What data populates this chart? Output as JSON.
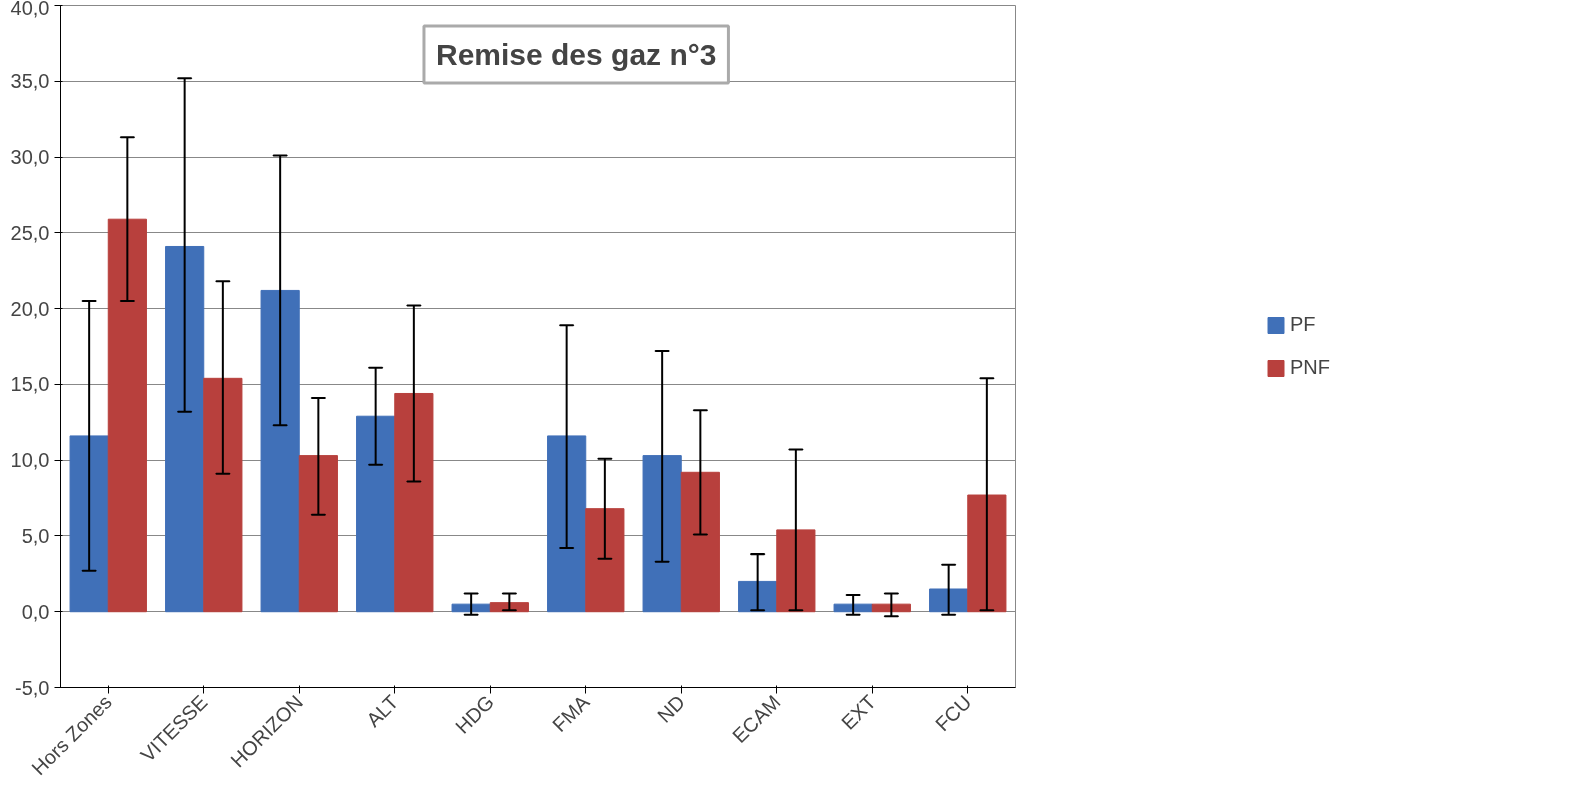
{
  "chart_data": {
    "type": "bar",
    "title": "Remise des gaz n°3",
    "categories": [
      "Hors Zones",
      "VITESSE",
      "HORIZON",
      "ALT",
      "HDG",
      "FMA",
      "ND",
      "ECAM",
      "EXT",
      "FCU"
    ],
    "series": [
      {
        "name": "PF",
        "color": "#4070b8",
        "values": [
          11.6,
          24.1,
          21.2,
          12.9,
          0.5,
          11.6,
          10.3,
          2.0,
          0.5,
          1.5
        ],
        "errors": [
          [
            2.7,
            20.5
          ],
          [
            13.2,
            35.2
          ],
          [
            12.3,
            30.1
          ],
          [
            9.7,
            16.1
          ],
          [
            -0.2,
            1.2
          ],
          [
            4.2,
            18.9
          ],
          [
            3.3,
            17.2
          ],
          [
            0.1,
            3.8
          ],
          [
            -0.2,
            1.1
          ],
          [
            -0.2,
            3.1
          ]
        ]
      },
      {
        "name": "PNF",
        "color": "#b8403d",
        "values": [
          25.9,
          15.4,
          10.3,
          14.4,
          0.6,
          6.8,
          9.2,
          5.4,
          0.5,
          7.7
        ],
        "errors": [
          [
            20.5,
            31.3
          ],
          [
            9.1,
            21.8
          ],
          [
            6.4,
            14.1
          ],
          [
            8.6,
            20.2
          ],
          [
            0.1,
            1.2
          ],
          [
            3.5,
            10.1
          ],
          [
            5.1,
            13.3
          ],
          [
            0.1,
            10.7
          ],
          [
            -0.3,
            1.2
          ],
          [
            0.1,
            15.4
          ]
        ]
      }
    ],
    "ylim": [
      -5,
      40
    ],
    "yticks": [
      {
        "value": -5,
        "label": "-5,0"
      },
      {
        "value": 0,
        "label": "0,0"
      },
      {
        "value": 5,
        "label": "5,0"
      },
      {
        "value": 10,
        "label": "10,0"
      },
      {
        "value": 15,
        "label": "15,0"
      },
      {
        "value": 20,
        "label": "20,0"
      },
      {
        "value": 25,
        "label": "25,0"
      },
      {
        "value": 30,
        "label": "30,0"
      },
      {
        "value": 35,
        "label": "35,0"
      },
      {
        "value": 40,
        "label": "40,0"
      }
    ],
    "grid": "y",
    "legend": "right"
  }
}
